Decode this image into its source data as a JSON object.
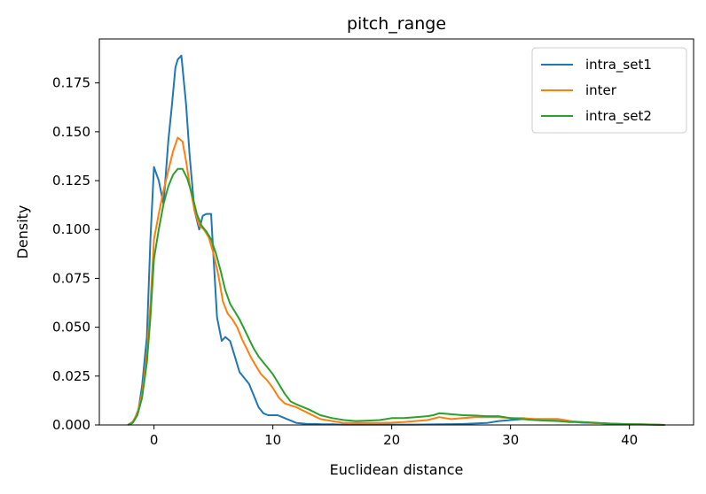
{
  "colors": {
    "intra_set1": "#1f77b4",
    "inter": "#ff7f0e",
    "intra_set2": "#2ca02c"
  },
  "chart_data": {
    "type": "line",
    "title": "pitch_range",
    "xlabel": "Euclidean distance",
    "ylabel": "Density",
    "xlim": [
      -4.6,
      45.4
    ],
    "ylim": [
      0,
      0.1975
    ],
    "xticks": [
      0,
      10,
      20,
      30,
      40
    ],
    "xtick_labels": [
      "0",
      "10",
      "20",
      "30",
      "40"
    ],
    "yticks": [
      0,
      0.025,
      0.05,
      0.075,
      0.1,
      0.125,
      0.15,
      0.175
    ],
    "ytick_labels": [
      "0.000",
      "0.025",
      "0.050",
      "0.075",
      "0.100",
      "0.125",
      "0.150",
      "0.175"
    ],
    "grid": false,
    "legend_position": "top-right",
    "series": [
      {
        "name": "intra_set1",
        "color": "#1f77b4",
        "x": [
          -2.2,
          -1.7,
          -1.3,
          -1.0,
          -0.6,
          -0.3,
          0.0,
          0.4,
          0.8,
          1.2,
          1.5,
          1.8,
          2.0,
          2.3,
          2.7,
          3.0,
          3.4,
          3.8,
          4.1,
          4.4,
          4.8,
          5.0,
          5.3,
          5.7,
          6.0,
          6.4,
          6.8,
          7.2,
          7.6,
          8.0,
          8.4,
          8.8,
          9.2,
          9.6,
          10.0,
          10.4,
          10.8,
          11.2,
          11.6,
          12.0,
          12.4,
          12.8,
          13.2,
          13.6,
          14.0,
          15.0,
          16.0,
          17.0,
          18.0,
          19.0,
          20.0,
          22.0,
          24.0,
          26.0,
          28.0,
          29.0,
          30.0,
          31.0,
          32.0,
          33.0,
          34.0,
          35.0,
          36.0,
          37.0,
          38.0,
          40.0,
          42.0,
          43.0
        ],
        "y": [
          0.0,
          0.002,
          0.008,
          0.02,
          0.045,
          0.095,
          0.132,
          0.125,
          0.113,
          0.145,
          0.163,
          0.183,
          0.187,
          0.189,
          0.164,
          0.138,
          0.11,
          0.1,
          0.107,
          0.108,
          0.108,
          0.087,
          0.055,
          0.043,
          0.045,
          0.043,
          0.035,
          0.027,
          0.024,
          0.021,
          0.015,
          0.009,
          0.006,
          0.005,
          0.005,
          0.005,
          0.004,
          0.003,
          0.002,
          0.001,
          0.0008,
          0.0006,
          0.0005,
          0.0005,
          0.0004,
          0.0003,
          0.0002,
          0.0002,
          0.0002,
          0.0002,
          0.0002,
          0.0002,
          0.0003,
          0.0005,
          0.001,
          0.002,
          0.0025,
          0.003,
          0.003,
          0.003,
          0.003,
          0.002,
          0.0012,
          0.001,
          0.0008,
          0.0003,
          0.0001,
          0.0
        ]
      },
      {
        "name": "inter",
        "color": "#ff7f0e",
        "x": [
          -2.2,
          -1.8,
          -1.4,
          -1.0,
          -0.6,
          -0.3,
          0.0,
          0.4,
          0.8,
          1.2,
          1.6,
          2.0,
          2.4,
          2.7,
          3.0,
          3.4,
          3.8,
          4.2,
          4.6,
          5.0,
          5.4,
          5.8,
          6.2,
          6.6,
          7.0,
          7.4,
          7.8,
          8.2,
          8.6,
          9.0,
          9.5,
          10.0,
          10.5,
          11.0,
          11.5,
          12.0,
          13.0,
          14.0,
          15.0,
          16.0,
          17.0,
          18.0,
          19.0,
          20.0,
          21.0,
          22.0,
          23.0,
          24.0,
          25.0,
          26.0,
          27.0,
          28.0,
          29.0,
          30.0,
          31.0,
          32.0,
          33.0,
          34.0,
          35.0,
          36.0,
          37.0,
          38.0,
          39.0,
          40.0,
          41.0,
          42.0,
          43.0
        ],
        "y": [
          0.0,
          0.0015,
          0.006,
          0.016,
          0.036,
          0.062,
          0.095,
          0.108,
          0.12,
          0.13,
          0.14,
          0.147,
          0.145,
          0.135,
          0.123,
          0.11,
          0.102,
          0.1,
          0.096,
          0.088,
          0.077,
          0.063,
          0.057,
          0.054,
          0.05,
          0.044,
          0.039,
          0.034,
          0.03,
          0.026,
          0.023,
          0.019,
          0.014,
          0.011,
          0.01,
          0.009,
          0.006,
          0.003,
          0.002,
          0.001,
          0.001,
          0.001,
          0.001,
          0.0012,
          0.0015,
          0.002,
          0.0025,
          0.004,
          0.003,
          0.0035,
          0.004,
          0.004,
          0.004,
          0.0035,
          0.0035,
          0.003,
          0.003,
          0.003,
          0.002,
          0.0015,
          0.001,
          0.0008,
          0.0005,
          0.0004,
          0.0003,
          0.0002,
          0.0
        ]
      },
      {
        "name": "intra_set2",
        "color": "#2ca02c",
        "x": [
          -2.2,
          -1.8,
          -1.4,
          -1.0,
          -0.6,
          -0.3,
          0.0,
          0.4,
          0.8,
          1.2,
          1.6,
          2.0,
          2.4,
          2.8,
          3.2,
          3.6,
          4.0,
          4.4,
          4.8,
          5.2,
          5.6,
          6.0,
          6.4,
          6.8,
          7.2,
          7.6,
          8.0,
          8.4,
          8.8,
          9.2,
          9.6,
          10.0,
          10.5,
          11.0,
          11.5,
          12.0,
          13.0,
          14.0,
          15.0,
          16.0,
          17.0,
          18.0,
          19.0,
          20.0,
          21.0,
          22.0,
          23.0,
          23.5,
          24.0,
          25.0,
          26.0,
          27.0,
          28.0,
          29.0,
          30.0,
          31.0,
          32.0,
          33.0,
          34.0,
          35.0,
          36.0,
          37.0,
          38.0,
          39.0,
          40.0,
          41.0,
          42.0,
          43.0
        ],
        "y": [
          0.0,
          0.001,
          0.005,
          0.014,
          0.032,
          0.055,
          0.085,
          0.1,
          0.113,
          0.122,
          0.128,
          0.131,
          0.131,
          0.126,
          0.118,
          0.108,
          0.102,
          0.099,
          0.095,
          0.088,
          0.079,
          0.069,
          0.062,
          0.058,
          0.054,
          0.049,
          0.044,
          0.039,
          0.035,
          0.032,
          0.029,
          0.026,
          0.021,
          0.016,
          0.012,
          0.0105,
          0.008,
          0.005,
          0.0035,
          0.0025,
          0.002,
          0.0022,
          0.0025,
          0.0035,
          0.0035,
          0.004,
          0.0045,
          0.005,
          0.006,
          0.0055,
          0.005,
          0.0048,
          0.0045,
          0.0045,
          0.0035,
          0.003,
          0.0025,
          0.0022,
          0.002,
          0.0015,
          0.0015,
          0.0012,
          0.0008,
          0.0006,
          0.0004,
          0.0003,
          0.0002,
          0.0
        ]
      }
    ]
  }
}
